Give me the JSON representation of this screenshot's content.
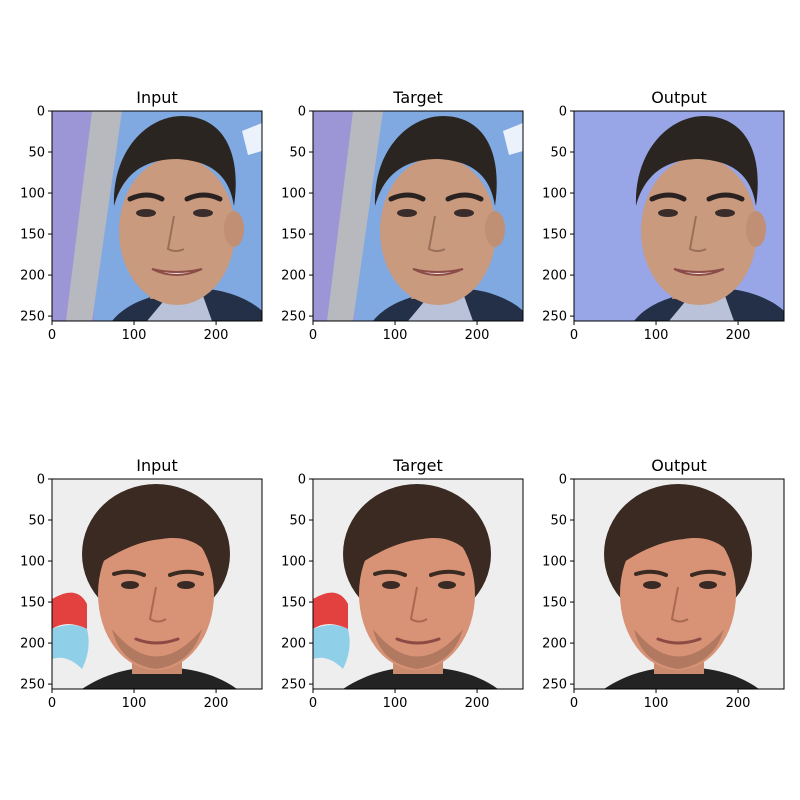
{
  "chart_data": {
    "type": "image-grid",
    "grid": {
      "rows": 2,
      "cols": 3
    },
    "axes": {
      "xticks": [
        0,
        100,
        200
      ],
      "yticks": [
        0,
        50,
        100,
        150,
        200,
        250
      ],
      "xlim": [
        0,
        256
      ],
      "ylim": [
        256,
        0
      ]
    },
    "panels": [
      {
        "title": "Input",
        "subject": "face-1",
        "variant": "input"
      },
      {
        "title": "Target",
        "subject": "face-1",
        "variant": "target"
      },
      {
        "title": "Output",
        "subject": "face-1",
        "variant": "output"
      },
      {
        "title": "Input",
        "subject": "face-2",
        "variant": "input"
      },
      {
        "title": "Target",
        "subject": "face-2",
        "variant": "target"
      },
      {
        "title": "Output",
        "subject": "face-2",
        "variant": "output"
      }
    ]
  },
  "colors": {
    "face1_background": "#7fa9e0",
    "face1_left_panel": "#9c95d6",
    "face1_skin": "#c99a7e",
    "face1_hair": "#2b2522",
    "face2_background": "#eeeeee",
    "face2_skin": "#d89276",
    "face2_hair": "#3a2a22",
    "accent_red": "#e34040",
    "accent_blue": "#8fd0e8"
  }
}
